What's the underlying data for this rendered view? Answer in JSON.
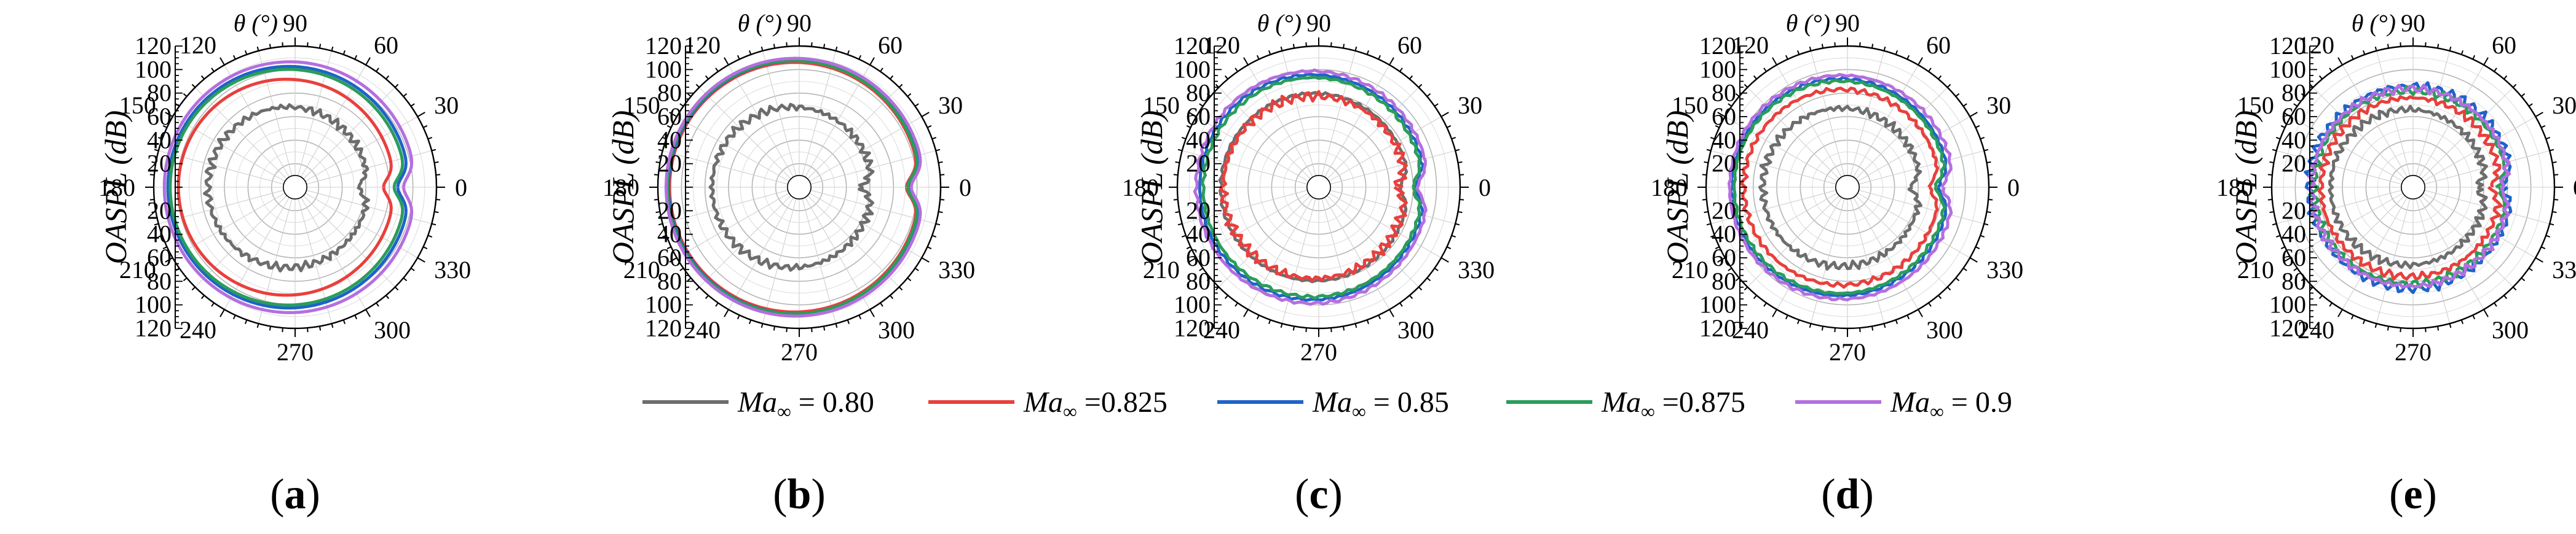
{
  "figure": {
    "y_axis_label": "OASPL (dB)",
    "theta_label": "θ (°)",
    "legend_label_prefix": "Ma∞"
  },
  "chart_data": {
    "type": "polar-line",
    "theta_unit": "degrees",
    "r_range": [
      0,
      120
    ],
    "r_ticks": [
      0,
      20,
      40,
      60,
      80,
      100,
      120
    ],
    "r_tick_labels_upper": [
      "120",
      "100",
      "80",
      "60",
      "40",
      "20"
    ],
    "r_tick_labels_lower": [
      "20",
      "40",
      "60",
      "80",
      "100",
      "120"
    ],
    "angle_labels": [
      {
        "deg": 0,
        "text": "0"
      },
      {
        "deg": 30,
        "text": "30"
      },
      {
        "deg": 60,
        "text": "60"
      },
      {
        "deg": 90,
        "text": "90"
      },
      {
        "deg": 120,
        "text": "120"
      },
      {
        "deg": 150,
        "text": "150"
      },
      {
        "deg": 180,
        "text": "180"
      },
      {
        "deg": 210,
        "text": "210"
      },
      {
        "deg": 240,
        "text": "240"
      },
      {
        "deg": 270,
        "text": "270"
      },
      {
        "deg": 300,
        "text": "300"
      },
      {
        "deg": 330,
        "text": "330"
      }
    ],
    "series": [
      {
        "name": "Ma∞ = 0.80",
        "value_text": "= 0.80",
        "color": "#6d6d6d"
      },
      {
        "name": "Ma∞ =0.825",
        "value_text": "=0.825",
        "color": "#e8403d"
      },
      {
        "name": "Ma∞ = 0.85",
        "value_text": "= 0.85",
        "color": "#1f63c8"
      },
      {
        "name": "Ma∞ =0.875",
        "value_text": "=0.875",
        "color": "#2a9d5a"
      },
      {
        "name": "Ma∞ = 0.9",
        "value_text": "= 0.9",
        "color": "#b46fdf"
      }
    ],
    "panels": [
      {
        "label": "a",
        "curves": [
          {
            "series": 0,
            "front": 74,
            "back": 62,
            "dip": 8,
            "noise": 4
          },
          {
            "series": 1,
            "front": 99,
            "back": 84,
            "dip": 9,
            "noise": 0
          },
          {
            "series": 2,
            "front": 108,
            "back": 97,
            "dip": 10,
            "noise": 0
          },
          {
            "series": 3,
            "front": 106,
            "back": 94,
            "dip": 10,
            "noise": 0
          },
          {
            "series": 4,
            "front": 111,
            "back": 102,
            "dip": 10,
            "noise": 0
          }
        ]
      },
      {
        "label": "b",
        "curves": [
          {
            "series": 0,
            "front": 74,
            "back": 62,
            "dip": 8,
            "noise": 4
          },
          {
            "series": 1,
            "front": 110,
            "back": 102,
            "dip": 11,
            "noise": 0
          },
          {
            "series": 2,
            "front": 111,
            "back": 104,
            "dip": 11,
            "noise": 0
          },
          {
            "series": 3,
            "front": 112,
            "back": 103,
            "dip": 11,
            "noise": 0
          },
          {
            "series": 4,
            "front": 113,
            "back": 106,
            "dip": 11,
            "noise": 0
          }
        ]
      },
      {
        "label": "c",
        "curves": [
          {
            "series": 0,
            "front": 83,
            "back": 76,
            "dip": 7,
            "noise": 1.5
          },
          {
            "series": 1,
            "front": 81,
            "back": 74,
            "dip": 7,
            "noise": 5
          },
          {
            "series": 2,
            "front": 101,
            "back": 90,
            "dip": 8,
            "noise": 1.5
          },
          {
            "series": 3,
            "front": 98,
            "back": 88,
            "dip": 8,
            "noise": 1.5
          },
          {
            "series": 4,
            "front": 104,
            "back": 93,
            "dip": 9,
            "noise": 1.5
          }
        ]
      },
      {
        "label": "d",
        "curves": [
          {
            "series": 0,
            "front": 72,
            "back": 62,
            "dip": 8,
            "noise": 4
          },
          {
            "series": 1,
            "front": 88,
            "back": 78,
            "dip": 8,
            "noise": 2.5
          },
          {
            "series": 2,
            "front": 98,
            "back": 86,
            "dip": 9,
            "noise": 1.5
          },
          {
            "series": 3,
            "front": 96,
            "back": 84,
            "dip": 9,
            "noise": 1.5
          },
          {
            "series": 4,
            "front": 100,
            "back": 90,
            "dip": 9,
            "noise": 1.5
          }
        ]
      },
      {
        "label": "e",
        "curves": [
          {
            "series": 0,
            "front": 70,
            "back": 62,
            "dip": 7,
            "noise": 4
          },
          {
            "series": 1,
            "front": 78,
            "back": 74,
            "dip": 7,
            "noise": 4
          },
          {
            "series": 2,
            "front": 88,
            "back": 84,
            "dip": 7,
            "noise": 5
          },
          {
            "series": 3,
            "front": 84,
            "back": 80,
            "dip": 7,
            "noise": 4
          },
          {
            "series": 4,
            "front": 86,
            "back": 82,
            "dip": 7,
            "noise": 4
          }
        ]
      }
    ]
  }
}
